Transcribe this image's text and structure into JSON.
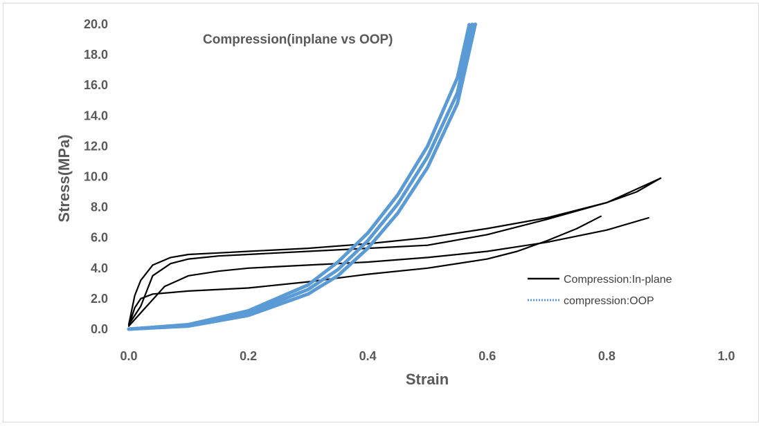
{
  "chart_data": {
    "type": "line",
    "title": "Compression(inplane vs OOP)",
    "xlabel": "Strain",
    "ylabel": "Stress(MPa)",
    "xlim": [
      0.0,
      1.0
    ],
    "ylim": [
      0.0,
      20.0
    ],
    "xticks": [
      "0.0",
      "0.2",
      "0.4",
      "0.6",
      "0.8",
      "1.0"
    ],
    "yticks": [
      "0.0",
      "2.0",
      "4.0",
      "6.0",
      "8.0",
      "10.0",
      "12.0",
      "14.0",
      "16.0",
      "18.0",
      "20.0"
    ],
    "grid": false,
    "legend_position": "right",
    "colors": {
      "inplane": "#000000",
      "oop": "#5b9bd5",
      "text": "#595959"
    },
    "series": [
      {
        "name": "Compression:In-plane",
        "style": "solid",
        "curves": [
          {
            "x": [
              0.0,
              0.01,
              0.02,
              0.04,
              0.07,
              0.1,
              0.15,
              0.2,
              0.3,
              0.4,
              0.5,
              0.6,
              0.7,
              0.8,
              0.85,
              0.89
            ],
            "y": [
              0.3,
              2.2,
              3.2,
              4.2,
              4.7,
              4.9,
              5.0,
              5.1,
              5.3,
              5.6,
              6.0,
              6.6,
              7.3,
              8.3,
              9.0,
              9.9
            ]
          },
          {
            "x": [
              0.0,
              0.02,
              0.04,
              0.07,
              0.1,
              0.15,
              0.2,
              0.3,
              0.4,
              0.5,
              0.6,
              0.7,
              0.8,
              0.89
            ],
            "y": [
              0.3,
              1.5,
              3.5,
              4.3,
              4.6,
              4.8,
              4.9,
              5.1,
              5.3,
              5.5,
              6.2,
              7.2,
              8.3,
              9.9
            ]
          },
          {
            "x": [
              0.0,
              0.03,
              0.06,
              0.1,
              0.15,
              0.2,
              0.3,
              0.4,
              0.5,
              0.6,
              0.7,
              0.8,
              0.87
            ],
            "y": [
              0.2,
              1.5,
              2.8,
              3.5,
              3.8,
              4.0,
              4.2,
              4.4,
              4.7,
              5.1,
              5.7,
              6.5,
              7.3
            ]
          },
          {
            "x": [
              0.0,
              0.01,
              0.02,
              0.04,
              0.07,
              0.1,
              0.2,
              0.3,
              0.4,
              0.5,
              0.6,
              0.65,
              0.7,
              0.75,
              0.79
            ],
            "y": [
              0.2,
              1.4,
              2.0,
              2.3,
              2.4,
              2.5,
              2.7,
              3.1,
              3.6,
              4.0,
              4.6,
              5.1,
              5.8,
              6.6,
              7.4
            ]
          }
        ]
      },
      {
        "name": "compression:OOP",
        "style": "dotted",
        "curves": [
          {
            "x": [
              0.0,
              0.1,
              0.2,
              0.3,
              0.35,
              0.4,
              0.45,
              0.5,
              0.55,
              0.57
            ],
            "y": [
              0.0,
              0.3,
              1.2,
              2.9,
              4.4,
              6.3,
              8.8,
              12.0,
              16.5,
              20.0
            ]
          },
          {
            "x": [
              0.0,
              0.1,
              0.2,
              0.3,
              0.35,
              0.4,
              0.45,
              0.5,
              0.55,
              0.575
            ],
            "y": [
              0.0,
              0.25,
              1.05,
              2.6,
              3.9,
              5.8,
              8.2,
              11.3,
              15.5,
              20.0
            ]
          },
          {
            "x": [
              0.0,
              0.1,
              0.2,
              0.3,
              0.35,
              0.4,
              0.45,
              0.5,
              0.55,
              0.58
            ],
            "y": [
              0.0,
              0.2,
              0.9,
              2.3,
              3.5,
              5.3,
              7.6,
              10.6,
              14.8,
              20.0
            ]
          }
        ]
      }
    ]
  }
}
